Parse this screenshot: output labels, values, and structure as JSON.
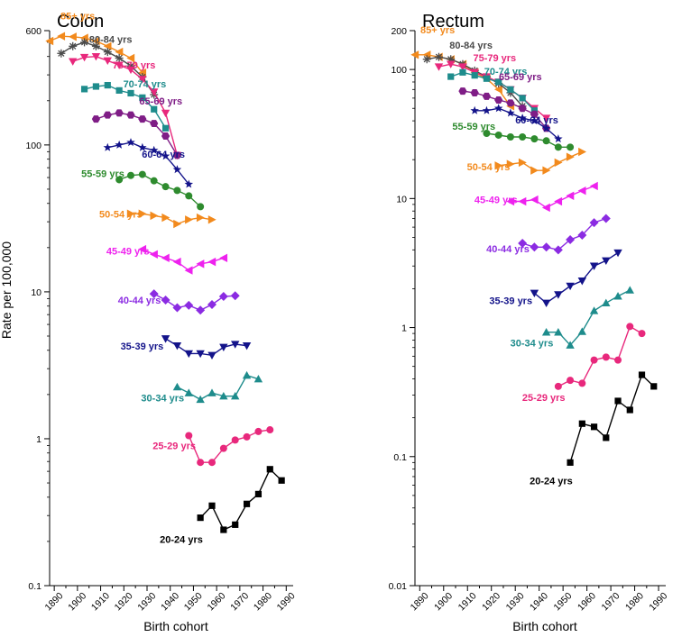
{
  "figure": {
    "ylabel": "Rate per 100,000"
  },
  "chart_data": [
    {
      "type": "line",
      "title": "Colon",
      "xlabel": "Birth cohort",
      "ylabel": "Rate per 100,000",
      "yscale": "log",
      "xlim": [
        1888,
        1993
      ],
      "ylim": [
        0.1,
        600
      ],
      "xticks": [
        "1890",
        "1900",
        "1910",
        "1920",
        "1930",
        "1940",
        "1950",
        "1960",
        "1970",
        "1980",
        "1990"
      ],
      "yticks": [
        "0.1",
        "1",
        "10",
        "100",
        "600"
      ],
      "series": [
        {
          "name": "85+ yrs",
          "color": "#f28a1d",
          "marker": "triangle-left",
          "x": [
            1888,
            1893,
            1898,
            1903,
            1908,
            1913,
            1918,
            1923,
            1928
          ],
          "y": [
            510,
            550,
            545,
            535,
            510,
            470,
            430,
            390,
            310
          ]
        },
        {
          "name": "80-84 yrs",
          "color": "#4a4a4a",
          "marker": "star",
          "x": [
            1893,
            1898,
            1903,
            1908,
            1913,
            1918,
            1923,
            1928,
            1933
          ],
          "y": [
            420,
            470,
            500,
            470,
            430,
            390,
            345,
            290,
            220
          ]
        },
        {
          "name": "75-79 yrs",
          "color": "#e8287c",
          "marker": "triangle-down",
          "x": [
            1898,
            1903,
            1908,
            1913,
            1918,
            1923,
            1928,
            1933,
            1938,
            1943
          ],
          "y": [
            370,
            395,
            400,
            375,
            350,
            325,
            280,
            230,
            165,
            85
          ]
        },
        {
          "name": "70-74 yrs",
          "color": "#1e8c8c",
          "marker": "square",
          "x": [
            1903,
            1908,
            1913,
            1918,
            1923,
            1928,
            1933,
            1938
          ],
          "y": [
            240,
            250,
            255,
            235,
            225,
            210,
            175,
            130
          ]
        },
        {
          "name": "65-69 yrs",
          "color": "#7f1d86",
          "marker": "hexagon",
          "x": [
            1908,
            1913,
            1918,
            1923,
            1928,
            1933,
            1938,
            1943
          ],
          "y": [
            150,
            160,
            165,
            160,
            150,
            140,
            115,
            85
          ]
        },
        {
          "name": "60-64 yrs",
          "color": "#13138a",
          "marker": "star",
          "x": [
            1913,
            1918,
            1923,
            1928,
            1933,
            1938,
            1943,
            1948
          ],
          "y": [
            96,
            100,
            104,
            96,
            92,
            84,
            68,
            54
          ]
        },
        {
          "name": "55-59 yrs",
          "color": "#2e8b2e",
          "marker": "circle",
          "x": [
            1918,
            1923,
            1928,
            1933,
            1938,
            1943,
            1948,
            1953
          ],
          "y": [
            58,
            62,
            63,
            57,
            52,
            49,
            45,
            38
          ]
        },
        {
          "name": "50-54 yrs",
          "color": "#f28a1d",
          "marker": "triangle-right",
          "x": [
            1923,
            1928,
            1933,
            1938,
            1943,
            1948,
            1953,
            1958
          ],
          "y": [
            34,
            34,
            33,
            32,
            29,
            31,
            32,
            31
          ]
        },
        {
          "name": "45-49 yrs",
          "color": "#ee22ee",
          "marker": "triangle-left",
          "x": [
            1928,
            1933,
            1938,
            1943,
            1948,
            1953,
            1958,
            1963
          ],
          "y": [
            19.5,
            18,
            17,
            16,
            14,
            15.5,
            16,
            17
          ]
        },
        {
          "name": "40-44 yrs",
          "color": "#8b2be2",
          "marker": "diamond",
          "x": [
            1933,
            1938,
            1943,
            1948,
            1953,
            1958,
            1963,
            1968
          ],
          "y": [
            9.7,
            8.8,
            7.8,
            8.1,
            7.5,
            8.2,
            9.3,
            9.4
          ]
        },
        {
          "name": "35-39 yrs",
          "color": "#13138a",
          "marker": "triangle-down",
          "x": [
            1938,
            1943,
            1948,
            1953,
            1958,
            1963,
            1968,
            1973
          ],
          "y": [
            4.8,
            4.3,
            3.8,
            3.8,
            3.7,
            4.2,
            4.4,
            4.3
          ]
        },
        {
          "name": "30-34 yrs",
          "color": "#1e8c8c",
          "marker": "triangle-up",
          "x": [
            1943,
            1948,
            1953,
            1958,
            1963,
            1968,
            1973,
            1978
          ],
          "y": [
            2.25,
            2.05,
            1.85,
            2.05,
            1.95,
            1.95,
            2.7,
            2.55
          ]
        },
        {
          "name": "25-29 yrs",
          "color": "#e8287c",
          "marker": "circle",
          "x": [
            1948,
            1953,
            1958,
            1963,
            1968,
            1973,
            1978,
            1983
          ],
          "y": [
            1.05,
            0.69,
            0.69,
            0.86,
            0.98,
            1.03,
            1.12,
            1.15
          ]
        },
        {
          "name": "20-24 yrs",
          "color": "#000000",
          "marker": "square",
          "x": [
            1953,
            1958,
            1963,
            1968,
            1973,
            1978,
            1983,
            1988
          ],
          "y": [
            0.29,
            0.35,
            0.24,
            0.26,
            0.36,
            0.42,
            0.62,
            0.52
          ]
        }
      ]
    },
    {
      "type": "line",
      "title": "Rectum",
      "xlabel": "Birth cohort",
      "ylabel": "Rate per 100,000",
      "yscale": "log",
      "xlim": [
        1888,
        1993
      ],
      "ylim": [
        0.01,
        200
      ],
      "xticks": [
        "1890",
        "1900",
        "1910",
        "1920",
        "1930",
        "1940",
        "1950",
        "1960",
        "1970",
        "1980",
        "1990"
      ],
      "yticks": [
        "0.01",
        "0.1",
        "1",
        "10",
        "100",
        "200"
      ],
      "series": [
        {
          "name": "85+ yrs",
          "color": "#f28a1d",
          "marker": "triangle-left",
          "x": [
            1888,
            1893,
            1898,
            1903,
            1908,
            1913,
            1918,
            1923,
            1928
          ],
          "y": [
            130,
            130,
            125,
            120,
            110,
            95,
            85,
            70,
            52
          ]
        },
        {
          "name": "80-84 yrs",
          "color": "#4a4a4a",
          "marker": "star",
          "x": [
            1893,
            1898,
            1903,
            1908,
            1913,
            1918,
            1923,
            1928,
            1933
          ],
          "y": [
            120,
            125,
            120,
            110,
            98,
            88,
            78,
            66,
            52
          ]
        },
        {
          "name": "75-79 yrs",
          "color": "#e8287c",
          "marker": "triangle-down",
          "x": [
            1898,
            1903,
            1908,
            1913,
            1918,
            1923,
            1928,
            1933,
            1938,
            1943
          ],
          "y": [
            105,
            110,
            105,
            95,
            88,
            80,
            70,
            60,
            50,
            42
          ]
        },
        {
          "name": "70-74 yrs",
          "color": "#1e8c8c",
          "marker": "square",
          "x": [
            1903,
            1908,
            1913,
            1918,
            1923,
            1928,
            1933,
            1938
          ],
          "y": [
            88,
            95,
            90,
            85,
            80,
            70,
            60,
            48
          ]
        },
        {
          "name": "65-69 yrs",
          "color": "#7f1d86",
          "marker": "hexagon",
          "x": [
            1908,
            1913,
            1918,
            1923,
            1928,
            1933,
            1938,
            1943
          ],
          "y": [
            68,
            66,
            62,
            58,
            55,
            50,
            45,
            35
          ]
        },
        {
          "name": "60-64 yrs",
          "color": "#13138a",
          "marker": "star",
          "x": [
            1913,
            1918,
            1923,
            1928,
            1933,
            1938,
            1943,
            1948
          ],
          "y": [
            48,
            48,
            50,
            46,
            42,
            40,
            35,
            29
          ]
        },
        {
          "name": "55-59 yrs",
          "color": "#2e8b2e",
          "marker": "circle",
          "x": [
            1918,
            1923,
            1928,
            1933,
            1938,
            1943,
            1948,
            1953
          ],
          "y": [
            32,
            31,
            30,
            30,
            29,
            28,
            25,
            25
          ]
        },
        {
          "name": "50-54 yrs",
          "color": "#f28a1d",
          "marker": "triangle-right",
          "x": [
            1923,
            1928,
            1933,
            1938,
            1943,
            1948,
            1953,
            1958
          ],
          "y": [
            18,
            18.5,
            19,
            16.5,
            16.5,
            19,
            21,
            23
          ]
        },
        {
          "name": "45-49 yrs",
          "color": "#ee22ee",
          "marker": "triangle-left",
          "x": [
            1928,
            1933,
            1938,
            1943,
            1948,
            1953,
            1958,
            1963
          ],
          "y": [
            9.5,
            9.5,
            9.8,
            8.5,
            9.5,
            10.5,
            11.5,
            12.5
          ]
        },
        {
          "name": "40-44 yrs",
          "color": "#8b2be2",
          "marker": "diamond",
          "x": [
            1933,
            1938,
            1943,
            1948,
            1953,
            1958,
            1963,
            1968
          ],
          "y": [
            4.5,
            4.2,
            4.2,
            4.0,
            4.8,
            5.2,
            6.5,
            7.0
          ]
        },
        {
          "name": "35-39 yrs",
          "color": "#13138a",
          "marker": "triangle-down",
          "x": [
            1938,
            1943,
            1948,
            1953,
            1958,
            1963,
            1968,
            1973
          ],
          "y": [
            1.85,
            1.55,
            1.8,
            2.1,
            2.3,
            3.0,
            3.3,
            3.8
          ]
        },
        {
          "name": "30-34 yrs",
          "color": "#1e8c8c",
          "marker": "triangle-up",
          "x": [
            1943,
            1948,
            1953,
            1958,
            1963,
            1968,
            1973,
            1978
          ],
          "y": [
            0.92,
            0.92,
            0.73,
            0.93,
            1.35,
            1.55,
            1.75,
            1.95
          ]
        },
        {
          "name": "25-29 yrs",
          "color": "#e8287c",
          "marker": "circle",
          "x": [
            1948,
            1953,
            1958,
            1963,
            1968,
            1973,
            1978,
            1983
          ],
          "y": [
            0.35,
            0.39,
            0.37,
            0.56,
            0.59,
            0.56,
            1.02,
            0.9
          ]
        },
        {
          "name": "20-24 yrs",
          "color": "#000000",
          "marker": "square",
          "x": [
            1953,
            1958,
            1963,
            1968,
            1973,
            1978,
            1983,
            1988
          ],
          "y": [
            0.09,
            0.18,
            0.17,
            0.14,
            0.27,
            0.23,
            0.43,
            0.35
          ]
        }
      ]
    }
  ]
}
